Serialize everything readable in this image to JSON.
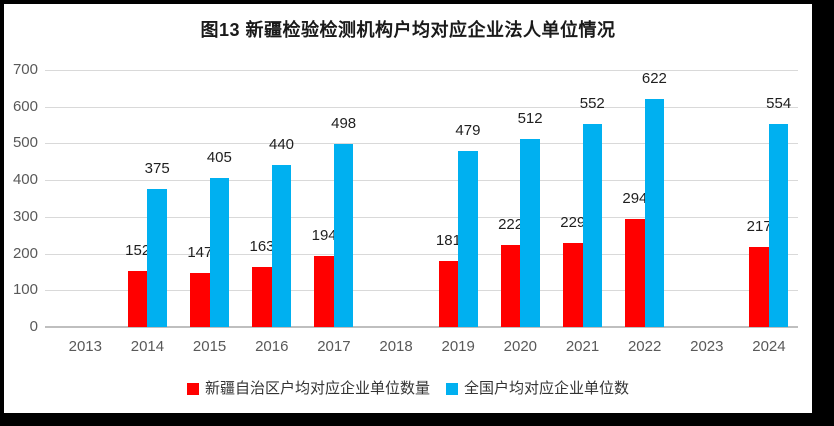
{
  "title": "图13  新疆检验检测机构户均对应企业法人单位情况",
  "chart_data": {
    "type": "bar",
    "categories": [
      "2013",
      "2014",
      "2015",
      "2016",
      "2017",
      "2018",
      "2019",
      "2020",
      "2021",
      "2022",
      "2023",
      "2024"
    ],
    "series": [
      {
        "key": "xinjiang",
        "name": "新疆自治区户均对应企业单位数量",
        "color": "#ff0000",
        "values": [
          null,
          152,
          147,
          163,
          194,
          null,
          181,
          222,
          229,
          294,
          null,
          217
        ]
      },
      {
        "key": "national",
        "name": "全国户均对应企业单位数",
        "color": "#00b0f0",
        "values": [
          null,
          375,
          405,
          440,
          498,
          null,
          479,
          512,
          552,
          622,
          null,
          554
        ]
      }
    ],
    "title": "图13  新疆检验检测机构户均对应企业法人单位情况",
    "xlabel": "",
    "ylabel": "",
    "ylim": [
      0,
      700
    ],
    "yticks": [
      0,
      100,
      200,
      300,
      400,
      500,
      600,
      700
    ],
    "grid": true,
    "data_labels": true,
    "legend_position": "bottom"
  },
  "colors": {
    "frame_border": "#000000",
    "panel_background": "#ffffff",
    "gridline": "#d9d9d9",
    "axis_line": "#bfbfbf",
    "tick_label": "#595959",
    "data_label": "#1f1f1f",
    "title": "#1a1a1a"
  }
}
